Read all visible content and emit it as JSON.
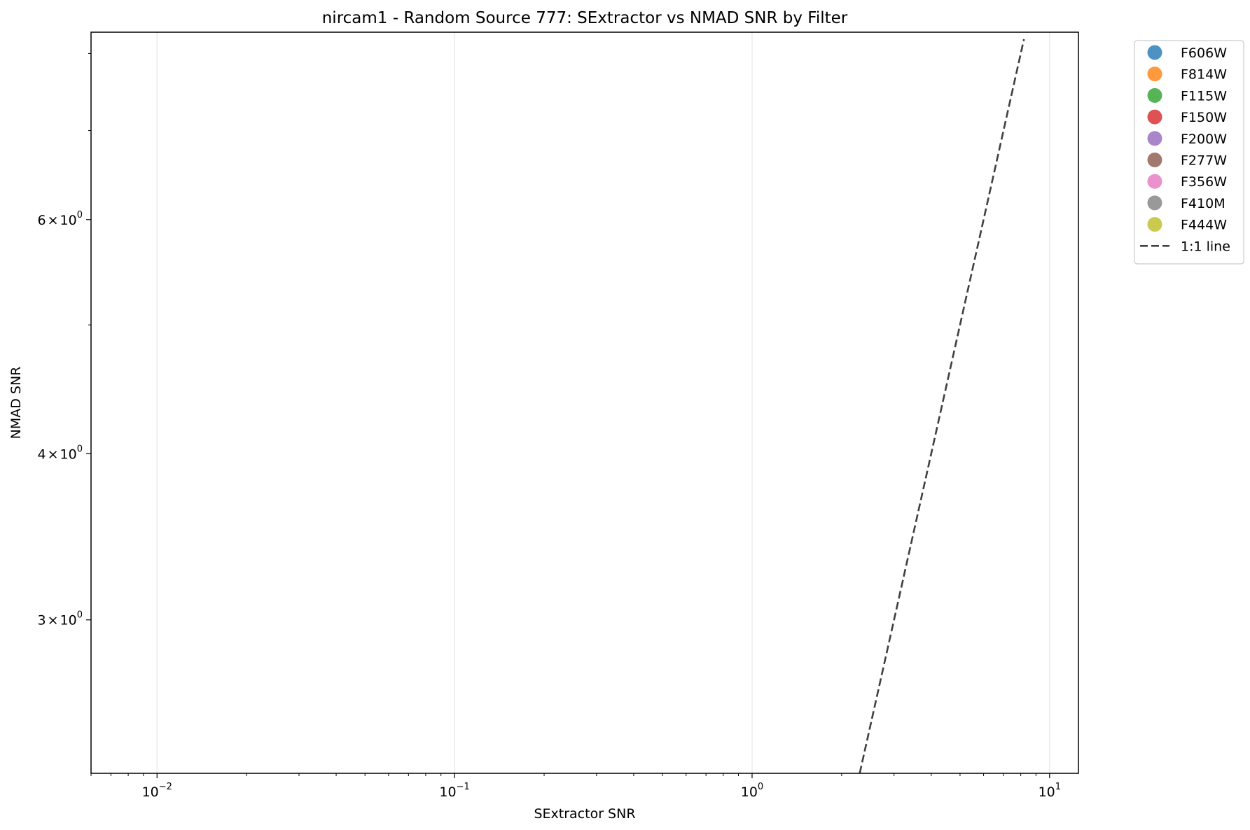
{
  "chart_data": {
    "type": "scatter",
    "title": "nircam1 - Random Source 777: SExtractor vs NMAD SNR by Filter",
    "xlabel": "SExtractor SNR",
    "ylabel": "NMAD SNR",
    "xscale": "log",
    "yscale": "log",
    "xlim": [
      0.006,
      12.5
    ],
    "ylim": [
      2.3,
      8.3
    ],
    "grid": {
      "x_major": true,
      "y_major": false
    },
    "legend_position": "outside-top-right",
    "x_ticks": [
      {
        "value": 0.01,
        "base": "10",
        "exp": "−2"
      },
      {
        "value": 0.1,
        "base": "10",
        "exp": "−1"
      },
      {
        "value": 1,
        "base": "10",
        "exp": "0"
      },
      {
        "value": 10,
        "base": "10",
        "exp": "1"
      }
    ],
    "y_ticks": [
      {
        "value": 3,
        "mant": "3",
        "base": "10",
        "exp": "0"
      },
      {
        "value": 4,
        "mant": "4",
        "base": "10",
        "exp": "0"
      },
      {
        "value": 6,
        "mant": "6",
        "base": "10",
        "exp": "0"
      }
    ],
    "y_minor_ticks": [
      5,
      7
    ],
    "series": [
      {
        "name": "F606W",
        "color": "#1f77b4",
        "points": []
      },
      {
        "name": "F814W",
        "color": "#ff7f0e",
        "points": []
      },
      {
        "name": "F115W",
        "color": "#2ca02c",
        "points": []
      },
      {
        "name": "F150W",
        "color": "#d62728",
        "points": []
      },
      {
        "name": "F200W",
        "color": "#9467bd",
        "points": []
      },
      {
        "name": "F277W",
        "color": "#8c564b",
        "points": []
      },
      {
        "name": "F356W",
        "color": "#e377c2",
        "points": []
      },
      {
        "name": "F410M",
        "color": "#7f7f7f",
        "points": []
      },
      {
        "name": "F444W",
        "color": "#bcbd22",
        "points": []
      }
    ],
    "reference_line": {
      "name": "1:1 line",
      "color": "#404040",
      "style": "dashed",
      "x": [
        2.3,
        8.2
      ],
      "y": [
        2.3,
        8.2
      ]
    }
  }
}
